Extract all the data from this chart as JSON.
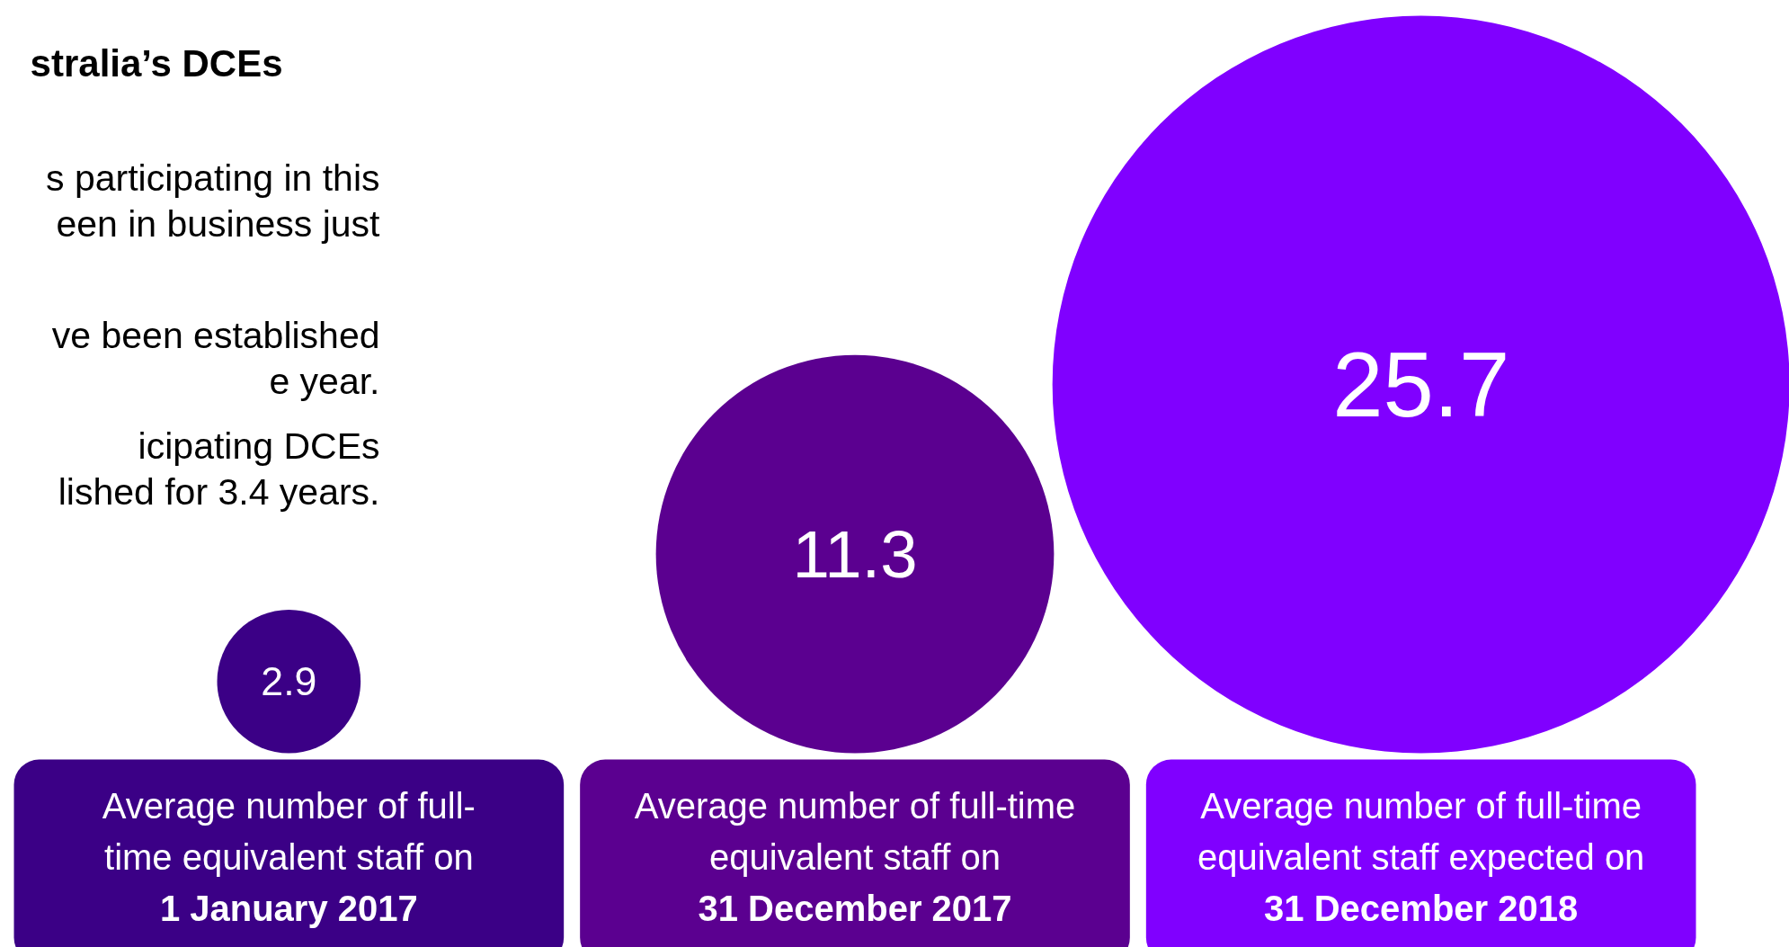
{
  "chart_data": {
    "type": "other",
    "title": "stralia’s DCEs",
    "annotations": [
      "s participating in this\neen in business just",
      "ve been established\ne year.",
      "icipating DCEs\nlished for 3.4 years."
    ],
    "categories": [
      "Average number of full-\ntime equivalent staff on\n1 January 2017",
      "Average number of full-time\nequivalent staff on\n31 December 2017",
      "Average number of full-time\nequivalent staff expected on\n31 December 2018"
    ],
    "values": [
      2.9,
      11.3,
      25.7
    ],
    "colors": [
      "#3b0086",
      "#5b0090",
      "#8000ff"
    ],
    "data_labels": true
  }
}
